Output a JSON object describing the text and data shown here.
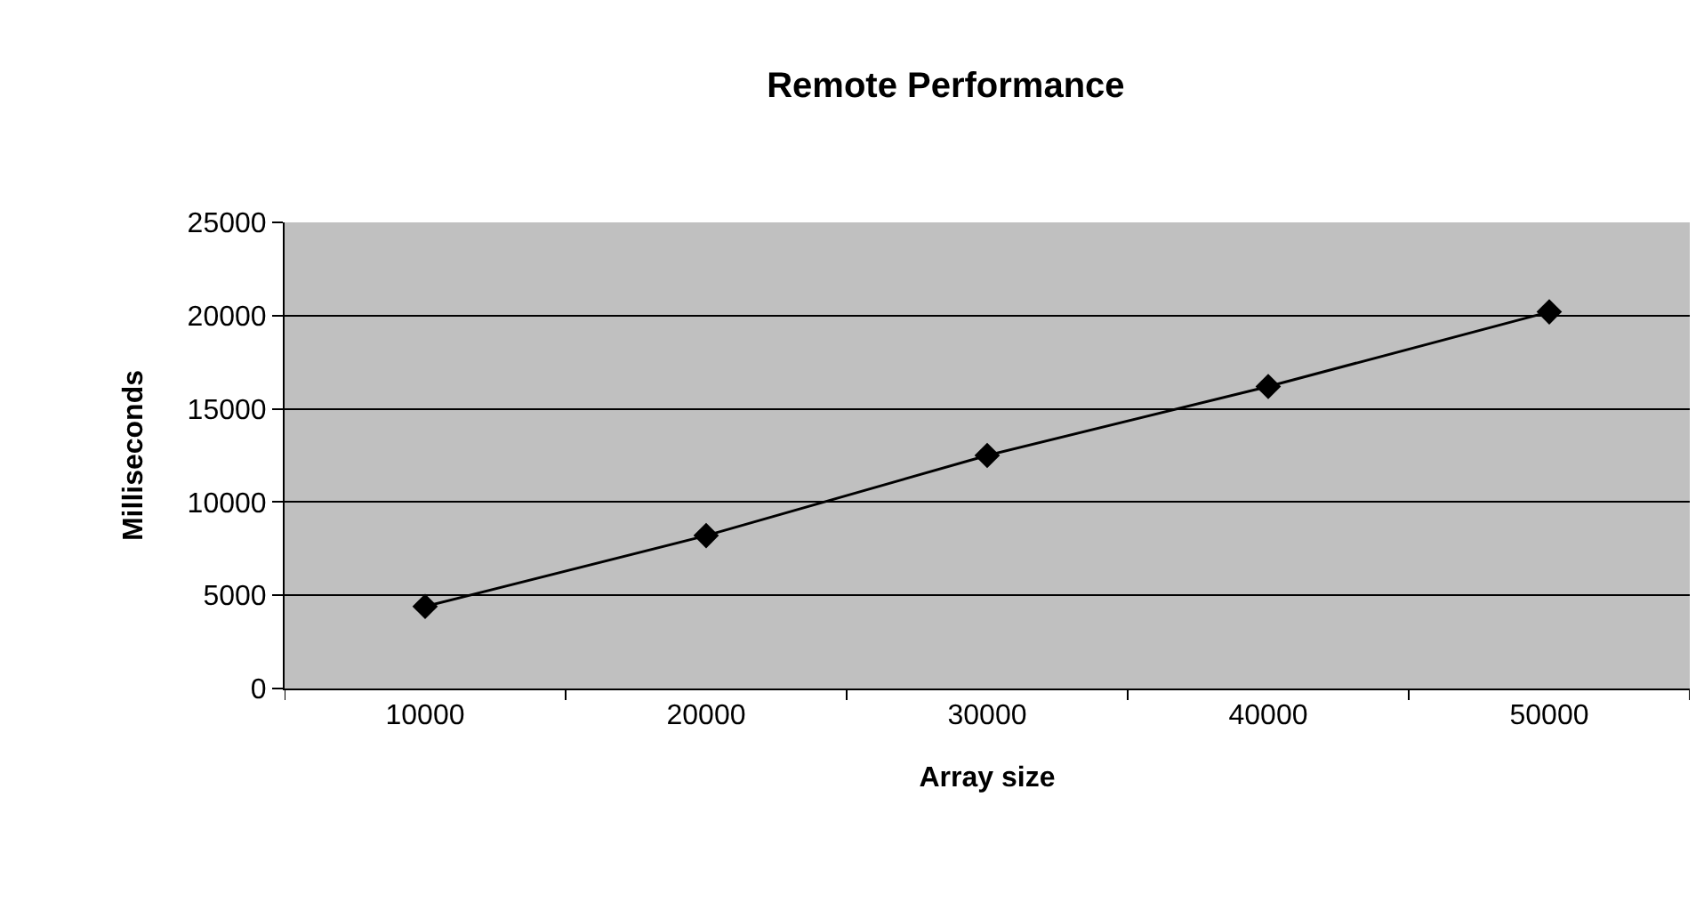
{
  "chart_data": {
    "type": "line",
    "title": "Remote Performance",
    "xlabel": "Array size",
    "ylabel": "Milliseconds",
    "categories": [
      "10000",
      "20000",
      "30000",
      "40000",
      "50000"
    ],
    "series": [
      {
        "color": "#000000",
        "values": [
          4400,
          8200,
          12500,
          16200,
          20200
        ]
      }
    ],
    "ylim": [
      0,
      25000
    ],
    "yticks": [
      0,
      5000,
      10000,
      15000,
      20000,
      25000
    ],
    "grid": "y",
    "marker": "diamond",
    "line_style": "solid"
  }
}
